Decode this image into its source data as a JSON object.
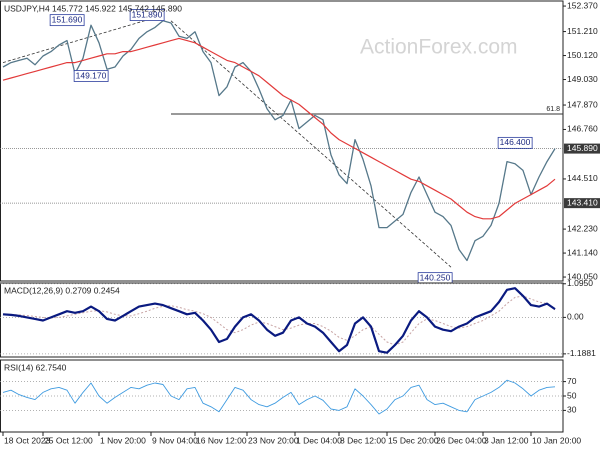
{
  "chart_data": [
    {
      "type": "line",
      "title": "USDJPY,H4  145.772 145.922 145.742 145.890",
      "watermark": "ActionForex.com",
      "ylim": [
        139.87,
        152.6
      ],
      "yticks": [
        {
          "value": 152.37,
          "label": "152.370"
        },
        {
          "value": 151.21,
          "label": "151.210"
        },
        {
          "value": 150.12,
          "label": "150.120"
        },
        {
          "value": 149.03,
          "label": "149.030"
        },
        {
          "value": 147.87,
          "label": "147.870"
        },
        {
          "value": 146.76,
          "label": "146.760"
        },
        {
          "value": 144.51,
          "label": "144.510"
        },
        {
          "value": 142.23,
          "label": "142.230"
        },
        {
          "value": 141.14,
          "label": "141.140"
        },
        {
          "value": 140.05,
          "label": "140.050"
        }
      ],
      "series": [
        {
          "color": "#56788a",
          "width": 1.3,
          "values": [
            149.6,
            149.8,
            149.9,
            150.0,
            149.7,
            150.1,
            150.3,
            150.6,
            150.8,
            149.3,
            150.0,
            151.5,
            150.7,
            149.5,
            149.6,
            150.1,
            150.4,
            150.9,
            151.2,
            151.4,
            151.7,
            151.6,
            151.0,
            150.9,
            151.2,
            150.3,
            149.8,
            148.3,
            148.7,
            149.6,
            149.8,
            149.4,
            148.6,
            147.7,
            147.2,
            147.4,
            148.1,
            146.8,
            147.1,
            147.4,
            147.2,
            145.6,
            144.7,
            144.3,
            146.3,
            145.4,
            144.2,
            142.3,
            142.3,
            142.6,
            142.9,
            143.9,
            144.6,
            143.8,
            143.0,
            142.8,
            142.4,
            141.3,
            140.8,
            141.7,
            141.9,
            142.4,
            143.4,
            145.3,
            145.2,
            144.9,
            143.8,
            144.6,
            145.3,
            145.89
          ]
        },
        {
          "color": "#e23a3a",
          "width": 1.2,
          "values": [
            149.0,
            149.1,
            149.2,
            149.3,
            149.4,
            149.5,
            149.6,
            149.7,
            149.8,
            149.8,
            149.9,
            150.0,
            150.1,
            150.2,
            150.2,
            150.3,
            150.3,
            150.4,
            150.5,
            150.6,
            150.7,
            150.8,
            150.9,
            150.8,
            150.7,
            150.5,
            150.3,
            150.1,
            149.9,
            149.8,
            149.6,
            149.4,
            149.2,
            148.9,
            148.6,
            148.3,
            148.1,
            147.9,
            147.6,
            147.3,
            147.0,
            146.6,
            146.3,
            146.1,
            145.9,
            145.7,
            145.5,
            145.3,
            145.1,
            144.9,
            144.7,
            144.5,
            144.4,
            144.2,
            144.0,
            143.8,
            143.6,
            143.3,
            143.0,
            142.8,
            142.7,
            142.7,
            142.8,
            143.1,
            143.4,
            143.6,
            143.8,
            144.0,
            144.2,
            144.5
          ]
        }
      ],
      "hlines": [
        {
          "value": 147.46,
          "label": "61.8",
          "x": 21,
          "style": "solid"
        },
        {
          "value": 145.89,
          "label": "145.890",
          "style": "axis"
        },
        {
          "value": 143.41,
          "label": "143.410",
          "style": "axis"
        }
      ],
      "trendlines": [
        {
          "x": [
            0,
            20
          ],
          "y": [
            149.8,
            151.95
          ]
        },
        {
          "x": [
            21,
            56
          ],
          "y": [
            151.7,
            140.5
          ]
        }
      ],
      "annotations": [
        {
          "text": "151.690",
          "x": 8,
          "y": 151.73
        },
        {
          "text": "151.890",
          "x": 18,
          "y": 151.96
        },
        {
          "text": "149.170",
          "x": 11,
          "y": 149.19
        },
        {
          "text": "146.400",
          "x": 64,
          "y": 146.15
        },
        {
          "text": "140.250",
          "x": 54,
          "y": 140.0
        }
      ]
    },
    {
      "type": "line",
      "title": "MACD(12,26,9) 0.2709 0.2454",
      "ylim": [
        -1.29,
        1.12
      ],
      "yticks": [
        {
          "value": 1.095,
          "label": "1.0950"
        },
        {
          "value": 0,
          "label": "0.00"
        },
        {
          "value": -1.1881,
          "label": "-1.1881"
        }
      ],
      "grid": true,
      "series": [
        {
          "color": "#c7a3a3",
          "width": 1,
          "dash": true,
          "values": [
            0.1,
            0.09,
            0.08,
            0.06,
            0.03,
            0.0,
            -0.02,
            0.0,
            0.05,
            0.1,
            0.15,
            0.2,
            0.22,
            0.18,
            0.1,
            0.05,
            0.05,
            0.12,
            0.2,
            0.3,
            0.36,
            0.38,
            0.33,
            0.25,
            0.2,
            0.12,
            0.0,
            -0.2,
            -0.4,
            -0.5,
            -0.4,
            -0.25,
            -0.15,
            -0.2,
            -0.3,
            -0.4,
            -0.35,
            -0.25,
            -0.2,
            -0.2,
            -0.3,
            -0.45,
            -0.65,
            -0.75,
            -0.6,
            -0.4,
            -0.3,
            -0.55,
            -0.8,
            -0.9,
            -0.8,
            -0.5,
            -0.2,
            -0.05,
            -0.1,
            -0.2,
            -0.3,
            -0.35,
            -0.3,
            -0.2,
            -0.1,
            0.05,
            0.2,
            0.45,
            0.65,
            0.7,
            0.6,
            0.5,
            0.45,
            0.2454
          ]
        },
        {
          "color": "#0a1a80",
          "width": 2.2,
          "values": [
            0.1,
            0.08,
            0.05,
            0.0,
            -0.05,
            -0.1,
            0.0,
            0.1,
            0.2,
            0.15,
            0.2,
            0.35,
            0.2,
            -0.05,
            -0.1,
            0.05,
            0.2,
            0.35,
            0.4,
            0.45,
            0.4,
            0.3,
            0.2,
            0.1,
            0.15,
            -0.1,
            -0.4,
            -0.8,
            -0.7,
            -0.3,
            0.0,
            0.1,
            -0.1,
            -0.4,
            -0.6,
            -0.5,
            -0.1,
            0.0,
            -0.2,
            -0.3,
            -0.5,
            -0.8,
            -1.1,
            -0.9,
            -0.2,
            0.0,
            -0.3,
            -1.1,
            -1.15,
            -0.9,
            -0.6,
            -0.1,
            0.2,
            0.0,
            -0.3,
            -0.4,
            -0.45,
            -0.3,
            -0.2,
            0.0,
            0.1,
            0.2,
            0.5,
            0.9,
            0.95,
            0.7,
            0.4,
            0.35,
            0.45,
            0.2709
          ]
        }
      ]
    },
    {
      "type": "line",
      "title": "RSI(14) 62.7540",
      "ylim": [
        0,
        100
      ],
      "yticks": [
        70,
        50,
        30
      ],
      "grid": true,
      "series": [
        {
          "color": "#3f9be0",
          "width": 0.9,
          "values": [
            55,
            58,
            52,
            48,
            45,
            55,
            60,
            62,
            58,
            40,
            55,
            68,
            50,
            40,
            48,
            55,
            62,
            60,
            65,
            68,
            66,
            50,
            45,
            60,
            62,
            40,
            35,
            28,
            45,
            62,
            58,
            45,
            38,
            35,
            40,
            48,
            55,
            38,
            45,
            50,
            44,
            32,
            30,
            35,
            60,
            50,
            38,
            25,
            32,
            45,
            50,
            62,
            65,
            45,
            38,
            40,
            35,
            30,
            28,
            45,
            50,
            55,
            62,
            72,
            68,
            60,
            50,
            58,
            62,
            62.754
          ]
        }
      ],
      "xticks": [
        {
          "value": 0,
          "label": "18 Oct 2023"
        },
        {
          "value": 5,
          "label": "25 Oct 12:00"
        },
        {
          "value": 12,
          "label": "1 Nov 20:00"
        },
        {
          "value": 18.5,
          "label": "9 Nov 04:00"
        },
        {
          "value": 24,
          "label": "16 Nov 12:00"
        },
        {
          "value": 30.5,
          "label": "23 Nov 20:00"
        },
        {
          "value": 36.5,
          "label": "1 Dec 04:00"
        },
        {
          "value": 42,
          "label": "8 Dec 12:00"
        },
        {
          "value": 48,
          "label": "15 Dec 20:00"
        },
        {
          "value": 54,
          "label": "26 Dec 04:00"
        },
        {
          "value": 60,
          "label": "3 Jan 12:00"
        },
        {
          "value": 66,
          "label": "10 Jan 20:00"
        }
      ]
    }
  ]
}
